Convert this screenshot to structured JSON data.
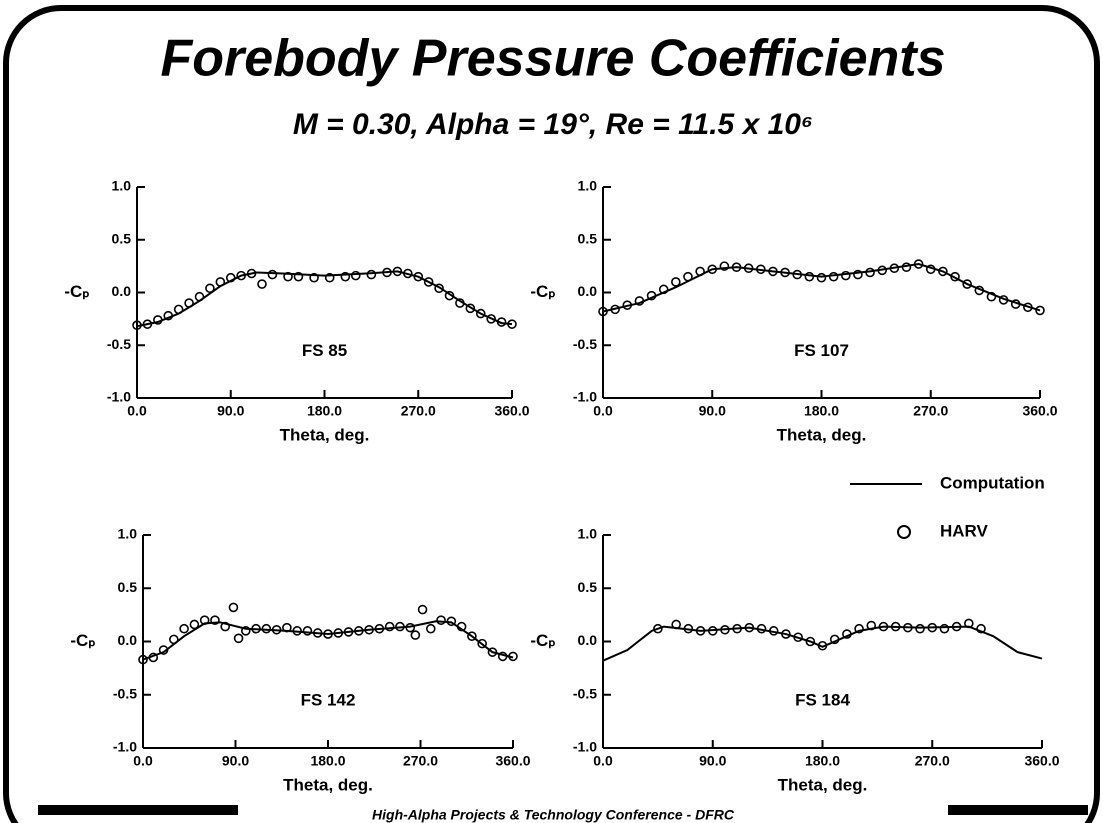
{
  "title": "Forebody Pressure Coefficients",
  "subtitle": "M = 0.30, Alpha = 19°, Re = 11.5 x 10⁶",
  "footer": "High-Alpha Projects & Technology Conference - DFRC",
  "chart_data": [
    {
      "type": "line",
      "title": "FS 85",
      "xlabel": "Theta, deg.",
      "ylabel": "-Cₚ",
      "xlim": [
        0,
        360
      ],
      "ylim": [
        -1,
        1
      ],
      "xticks": [
        {
          "value": 0,
          "label": "0.0"
        },
        {
          "value": 90,
          "label": "90.0"
        },
        {
          "value": 180,
          "label": "180.0"
        },
        {
          "value": 270,
          "label": "270.0"
        },
        {
          "value": 360,
          "label": "360.0"
        }
      ],
      "yticks": [
        {
          "value": -1,
          "label": "-1.0"
        },
        -0.5,
        {
          "value": 0,
          "label": "0.0"
        },
        0.5,
        {
          "value": 1,
          "label": "1.0"
        }
      ],
      "series": [
        {
          "name": "Computation",
          "mode": "line",
          "color": "#000",
          "x": [
            0,
            20,
            40,
            60,
            80,
            100,
            115,
            140,
            180,
            220,
            250,
            270,
            290,
            310,
            330,
            350,
            360
          ],
          "values": [
            -0.32,
            -0.28,
            -0.2,
            -0.08,
            0.06,
            0.16,
            0.19,
            0.18,
            0.16,
            0.18,
            0.2,
            0.15,
            0.05,
            -0.08,
            -0.2,
            -0.29,
            -0.3
          ]
        },
        {
          "name": "HARV",
          "mode": "markers",
          "color": "#000",
          "x": [
            0,
            10,
            20,
            30,
            40,
            50,
            60,
            70,
            80,
            90,
            100,
            110,
            120,
            130,
            145,
            155,
            170,
            185,
            200,
            210,
            225,
            240,
            250,
            260,
            270,
            280,
            290,
            300,
            310,
            320,
            330,
            340,
            350,
            360
          ],
          "values": [
            -0.31,
            -0.3,
            -0.26,
            -0.22,
            -0.16,
            -0.1,
            -0.04,
            0.04,
            0.1,
            0.14,
            0.16,
            0.18,
            0.08,
            0.17,
            0.15,
            0.15,
            0.14,
            0.14,
            0.15,
            0.16,
            0.17,
            0.19,
            0.2,
            0.18,
            0.15,
            0.1,
            0.04,
            -0.03,
            -0.1,
            -0.15,
            -0.2,
            -0.25,
            -0.28,
            -0.3
          ]
        }
      ]
    },
    {
      "type": "line",
      "title": "FS 107",
      "xlabel": "Theta, deg.",
      "ylabel": "-Cₚ",
      "xlim": [
        0,
        360
      ],
      "ylim": [
        -1,
        1
      ],
      "xticks": [
        {
          "value": 0,
          "label": "0.0"
        },
        {
          "value": 90,
          "label": "90.0"
        },
        {
          "value": 180,
          "label": "180.0"
        },
        {
          "value": 270,
          "label": "270.0"
        },
        {
          "value": 360,
          "label": "360.0"
        }
      ],
      "yticks": [
        {
          "value": -1,
          "label": "-1.0"
        },
        -0.5,
        {
          "value": 0,
          "label": "0.0"
        },
        0.5,
        {
          "value": 1,
          "label": "1.0"
        }
      ],
      "series": [
        {
          "mode": "line",
          "color": "#000",
          "x": [
            0,
            30,
            60,
            90,
            110,
            140,
            180,
            220,
            260,
            280,
            300,
            330,
            360
          ],
          "values": [
            -0.18,
            -0.1,
            0.05,
            0.22,
            0.24,
            0.2,
            0.15,
            0.2,
            0.27,
            0.2,
            0.08,
            -0.06,
            -0.17
          ]
        },
        {
          "mode": "markers",
          "color": "#000",
          "x": [
            0,
            10,
            20,
            30,
            40,
            50,
            60,
            70,
            80,
            90,
            100,
            110,
            120,
            130,
            140,
            150,
            160,
            170,
            180,
            190,
            200,
            210,
            220,
            230,
            240,
            250,
            260,
            270,
            280,
            290,
            300,
            310,
            320,
            330,
            340,
            350,
            360
          ],
          "values": [
            -0.18,
            -0.16,
            -0.12,
            -0.08,
            -0.03,
            0.03,
            0.1,
            0.15,
            0.2,
            0.22,
            0.25,
            0.24,
            0.23,
            0.22,
            0.2,
            0.19,
            0.17,
            0.15,
            0.14,
            0.15,
            0.16,
            0.17,
            0.19,
            0.21,
            0.23,
            0.24,
            0.27,
            0.22,
            0.2,
            0.15,
            0.08,
            0.02,
            -0.04,
            -0.07,
            -0.11,
            -0.14,
            -0.17
          ]
        }
      ]
    },
    {
      "type": "line",
      "title": "FS 142",
      "xlabel": "Theta, deg.",
      "ylabel": "-Cₚ",
      "xlim": [
        0,
        360
      ],
      "ylim": [
        -1,
        1
      ],
      "xticks": [
        {
          "value": 0,
          "label": "0.0"
        },
        {
          "value": 90,
          "label": "90.0"
        },
        {
          "value": 180,
          "label": "180.0"
        },
        {
          "value": 270,
          "label": "270.0"
        },
        {
          "value": 360,
          "label": "360.0"
        }
      ],
      "yticks": [
        {
          "value": -1,
          "label": "-1.0"
        },
        -0.5,
        {
          "value": 0,
          "label": "0.0"
        },
        0.5,
        {
          "value": 1,
          "label": "1.0"
        }
      ],
      "series": [
        {
          "mode": "line",
          "color": "#000",
          "x": [
            0,
            20,
            40,
            60,
            75,
            100,
            140,
            180,
            220,
            260,
            285,
            300,
            320,
            340,
            360
          ],
          "values": [
            -0.17,
            -0.1,
            0.05,
            0.17,
            0.18,
            0.12,
            0.1,
            0.07,
            0.11,
            0.14,
            0.19,
            0.18,
            0.05,
            -0.1,
            -0.15
          ]
        },
        {
          "mode": "markers",
          "color": "#000",
          "x": [
            0,
            10,
            20,
            30,
            40,
            50,
            60,
            70,
            80,
            88,
            93,
            100,
            110,
            120,
            130,
            140,
            150,
            160,
            170,
            180,
            190,
            200,
            210,
            220,
            230,
            240,
            250,
            260,
            265,
            272,
            280,
            290,
            300,
            310,
            320,
            330,
            340,
            350,
            360
          ],
          "values": [
            -0.17,
            -0.15,
            -0.08,
            0.02,
            0.12,
            0.16,
            0.2,
            0.2,
            0.14,
            0.32,
            0.03,
            0.1,
            0.12,
            0.12,
            0.11,
            0.13,
            0.1,
            0.1,
            0.08,
            0.07,
            0.08,
            0.09,
            0.1,
            0.11,
            0.12,
            0.14,
            0.14,
            0.13,
            0.06,
            0.3,
            0.12,
            0.2,
            0.19,
            0.14,
            0.05,
            -0.02,
            -0.1,
            -0.14,
            -0.14
          ]
        }
      ]
    },
    {
      "type": "line",
      "title": "FS 184",
      "xlabel": "Theta, deg.",
      "ylabel": "-Cₚ",
      "xlim": [
        0,
        360
      ],
      "ylim": [
        -1,
        1
      ],
      "xticks": [
        {
          "value": 0,
          "label": "0.0"
        },
        {
          "value": 90,
          "label": "90.0"
        },
        {
          "value": 180,
          "label": "180.0"
        },
        {
          "value": 270,
          "label": "270.0"
        },
        {
          "value": 360,
          "label": "360.0"
        }
      ],
      "yticks": [
        {
          "value": -1,
          "label": "-1.0"
        },
        -0.5,
        {
          "value": 0,
          "label": "0.0"
        },
        0.5,
        {
          "value": 1,
          "label": "1.0"
        }
      ],
      "series": [
        {
          "mode": "line",
          "color": "#000",
          "x": [
            0,
            20,
            40,
            50,
            80,
            120,
            150,
            170,
            180,
            190,
            210,
            230,
            260,
            300,
            320,
            340,
            360
          ],
          "values": [
            -0.18,
            -0.08,
            0.1,
            0.14,
            0.1,
            0.13,
            0.07,
            0.0,
            -0.05,
            0.0,
            0.1,
            0.14,
            0.13,
            0.14,
            0.05,
            -0.1,
            -0.16
          ]
        },
        {
          "mode": "markers",
          "color": "#000",
          "x": [
            45,
            60,
            70,
            80,
            90,
            100,
            110,
            120,
            130,
            140,
            150,
            160,
            170,
            180,
            190,
            200,
            210,
            220,
            230,
            240,
            250,
            260,
            270,
            280,
            290,
            300,
            310
          ],
          "values": [
            0.12,
            0.16,
            0.12,
            0.1,
            0.1,
            0.11,
            0.12,
            0.13,
            0.12,
            0.1,
            0.07,
            0.04,
            0.0,
            -0.04,
            0.02,
            0.07,
            0.12,
            0.15,
            0.14,
            0.14,
            0.13,
            0.12,
            0.13,
            0.12,
            0.14,
            0.17,
            0.12
          ]
        }
      ]
    }
  ]
}
